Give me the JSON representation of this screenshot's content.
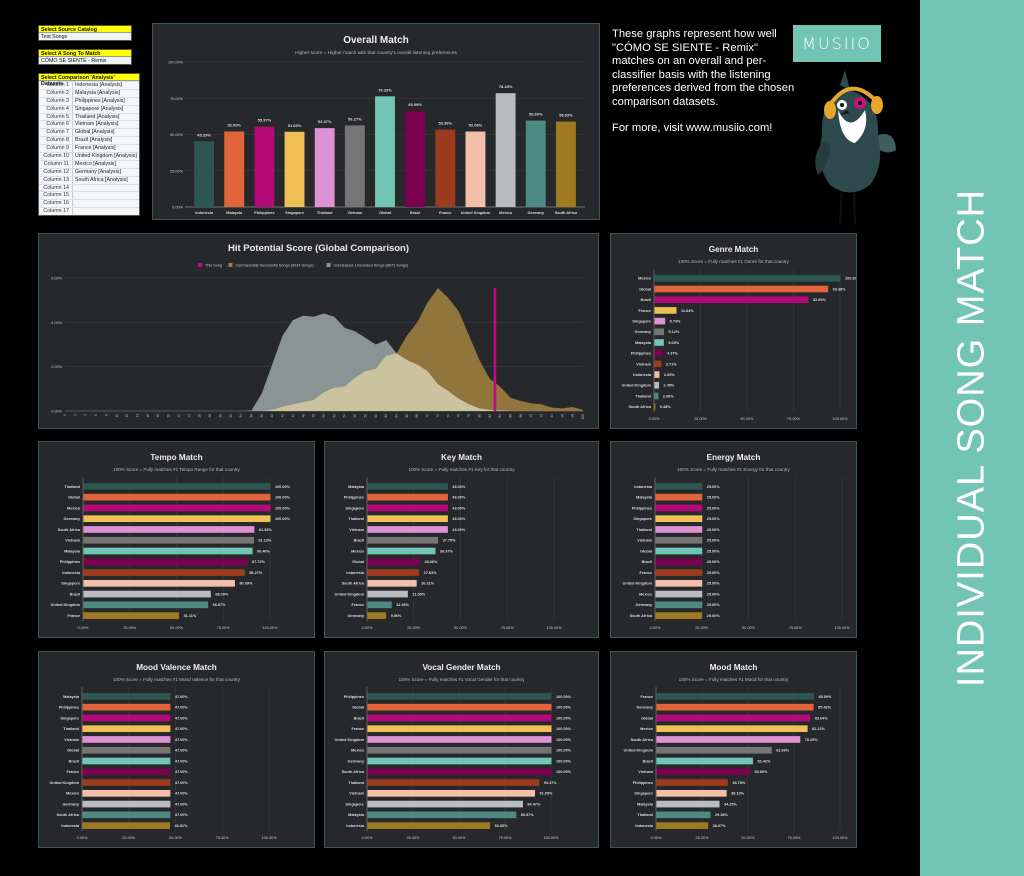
{
  "selectors": {
    "catalog": {
      "label": "Select Source Catalog",
      "value": "Test Songs"
    },
    "song": {
      "label": "Select A Song To Match",
      "value": "CÓMO SE SIENTE - Remix"
    },
    "datasets": {
      "label": "Select Comparison 'Analysis' Datasets",
      "rows": [
        {
          "col": "Column 1",
          "value": "Indonesia [Analysis]"
        },
        {
          "col": "Column 2",
          "value": "Malaysia [Analysis]"
        },
        {
          "col": "Column 3",
          "value": "Philippines [Analysis]"
        },
        {
          "col": "Column 4",
          "value": "Singapore [Analysis]"
        },
        {
          "col": "Column 5",
          "value": "Thailand [Analysis]"
        },
        {
          "col": "Column 6",
          "value": "Vietnam [Analysis]"
        },
        {
          "col": "Column 7",
          "value": "Global [Analysis]"
        },
        {
          "col": "Column 8",
          "value": "Brazil [Analysis]"
        },
        {
          "col": "Column 9",
          "value": "France [Analysis]"
        },
        {
          "col": "Column 10",
          "value": "United Kingdom [Analysis]"
        },
        {
          "col": "Column 11",
          "value": "Mexico [Analysis]"
        },
        {
          "col": "Column 12",
          "value": "Germany [Analysis]"
        },
        {
          "col": "Column 13",
          "value": "South Africa [Analysis]"
        },
        {
          "col": "Column 14",
          "value": ""
        },
        {
          "col": "Column 15",
          "value": ""
        },
        {
          "col": "Column 16",
          "value": ""
        },
        {
          "col": "Column 17",
          "value": ""
        }
      ]
    }
  },
  "description": {
    "paragraph1": "These graphs represent how well \"CÓMO SE SIENTE - Remix\" matches on an overall and per-classifier basis with the listening preferences derived from the chosen comparison datasets.",
    "paragraph2": "For more, visit www.musiio.com!"
  },
  "brand": {
    "logo_text": "MUSIIO",
    "band_title": "INDIVIDUAL SONG MATCH",
    "accent": "#72c4b5"
  },
  "palette": [
    "#2e5652",
    "#e0653a",
    "#b5097a",
    "#f0bf55",
    "#df92d3",
    "#757575",
    "#72c4b5",
    "#7c0050",
    "#9c3b1e",
    "#f2c0aa",
    "#babdbf",
    "#4e8a84",
    "#a07a22"
  ],
  "chart_data": [
    {
      "id": "overall",
      "type": "bar",
      "title": "Overall Match",
      "subtitle": "Higher score = Higher match with that country's overall listening preferences",
      "categories": [
        "Indonesia",
        "Malaysia",
        "Philippines",
        "Singapore",
        "Thailand",
        "Vietnam",
        "Global",
        "Brazil",
        "France",
        "United Kingdom",
        "Mexico",
        "Germany",
        "South Africa"
      ],
      "values": [
        45.29,
        52.09,
        55.37,
        51.89,
        54.37,
        56.27,
        76.33,
        66.09,
        53.36,
        52.06,
        78.48,
        59.6,
        58.93
      ],
      "ylim": [
        0,
        100
      ],
      "yticks": [
        "0.00%",
        "25.00%",
        "50.00%",
        "75.00%",
        "100.00%"
      ],
      "grid": true
    },
    {
      "id": "hit",
      "type": "area",
      "title": "Hit Potential Score (Global Comparison)",
      "legend": [
        {
          "name": "This Song",
          "color": "#c20a86"
        },
        {
          "name": "Commercially Successful Songs (8934 Songs)",
          "color": "#a38241"
        },
        {
          "name": "Unreleased, Uncurated Songs (8672 Songs)",
          "color": "#8f9a9a"
        }
      ],
      "legend_position": "top",
      "ylim": [
        0,
        6
      ],
      "yticks": [
        "0.00%",
        "2.00%",
        "4.00%",
        "6.00%"
      ],
      "x": [
        0,
        2,
        4,
        6,
        8,
        10,
        12,
        14,
        16,
        18,
        20,
        22,
        24,
        26,
        28,
        30,
        32,
        34,
        36,
        38,
        40,
        42,
        44,
        46,
        48,
        50,
        52,
        54,
        56,
        58,
        60,
        62,
        64,
        66,
        68,
        70,
        72,
        74,
        76,
        78,
        80,
        82,
        84,
        86,
        88,
        90,
        92,
        94,
        96,
        98,
        100
      ],
      "this_song": 83,
      "series": [
        {
          "name": "Unreleased, Uncurated Songs (8672 Songs)",
          "values": [
            0,
            0,
            0,
            0,
            0,
            0,
            0,
            0,
            0,
            0,
            0,
            0,
            0,
            0,
            0,
            0,
            0,
            0,
            0.02,
            0.8,
            2.1,
            3.4,
            4.1,
            4.3,
            4.25,
            4.4,
            4.25,
            3.75,
            3.6,
            3.3,
            3.0,
            3.2,
            2.6,
            2.3,
            2.1,
            1.8,
            1.2,
            0.9,
            0.55,
            0.3,
            0.12,
            0.05,
            0.02,
            0,
            0,
            0,
            0,
            0,
            0,
            0,
            0
          ]
        },
        {
          "name": "Commercially Successful Songs (8934 Songs)",
          "values": [
            0,
            0,
            0,
            0,
            0,
            0,
            0,
            0,
            0,
            0,
            0,
            0,
            0,
            0,
            0,
            0,
            0,
            0,
            0,
            0,
            0.05,
            0.2,
            0.3,
            0.4,
            0.5,
            0.85,
            1.05,
            1.1,
            1.5,
            1.8,
            1.9,
            2.5,
            2.6,
            3.4,
            4.0,
            4.9,
            5.55,
            5.1,
            4.5,
            3.4,
            2.3,
            1.45,
            1.1,
            0.6,
            0.45,
            0.35,
            0.3,
            0.15,
            0.12,
            0.18,
            0.05
          ]
        }
      ]
    },
    {
      "id": "genre",
      "type": "bar",
      "orientation": "horizontal",
      "title": "Genre Match",
      "subtitle": "100% Score = Fully matches #1 Genre for that country",
      "categories": [
        "Mexico",
        "Global",
        "Brazil",
        "France",
        "Singapore",
        "Germany",
        "Malaysia",
        "Philippines",
        "Vietnam",
        "Indonesia",
        "United Kingdom",
        "Thailand",
        "South Africa"
      ],
      "values": [
        100.0,
        93.38,
        82.8,
        11.84,
        5.74,
        5.12,
        5.03,
        4.37,
        3.71,
        2.65,
        2.45,
        2.08,
        0.48
      ],
      "xlim": [
        0,
        100
      ],
      "xticks": [
        "0.00%",
        "25.00%",
        "50.00%",
        "75.00%",
        "100.00%"
      ]
    },
    {
      "id": "tempo",
      "type": "bar",
      "orientation": "horizontal",
      "title": "Tempo Match",
      "subtitle": "100% Score = Fully matches #1 Tempo Range for that country",
      "categories": [
        "Thailand",
        "Global",
        "Mexico",
        "Germany",
        "South Africa",
        "Vietnam",
        "Malaysia",
        "Philippines",
        "Indonesia",
        "Singapore",
        "Brazil",
        "United Kingdom",
        "France"
      ],
      "values": [
        100.0,
        100.0,
        100.0,
        100.0,
        91.38,
        91.13,
        90.4,
        87.72,
        86.27,
        80.99,
        68.09,
        66.67,
        51.11
      ],
      "xlim": [
        0,
        100
      ],
      "xticks": [
        "0.00%",
        "25.00%",
        "50.00%",
        "75.00%",
        "100.00%"
      ]
    },
    {
      "id": "key",
      "type": "bar",
      "orientation": "horizontal",
      "title": "Key Match",
      "subtitle": "100% Score = Fully matches #1 Key for that country",
      "categories": [
        "Malaysia",
        "Philippines",
        "Singapore",
        "Thailand",
        "Vietnam",
        "Brazil",
        "Mexico",
        "Global",
        "Indonesia",
        "South Africa",
        "United Kingdom",
        "France",
        "Germany"
      ],
      "values": [
        43.0,
        43.0,
        43.0,
        43.0,
        43.0,
        37.75,
        36.37,
        28.06,
        27.63,
        26.31,
        21.59,
        12.93,
        9.96
      ],
      "xlim": [
        0,
        100
      ],
      "xticks": [
        "0.00%",
        "25.00%",
        "50.00%",
        "75.00%",
        "100.00%"
      ]
    },
    {
      "id": "energy",
      "type": "bar",
      "orientation": "horizontal",
      "title": "Energy Match",
      "subtitle": "100% Score = Fully matches #1 Energy for that country",
      "categories": [
        "Indonesia",
        "Malaysia",
        "Philippines",
        "Singapore",
        "Thailand",
        "Vietnam",
        "Global",
        "Brazil",
        "France",
        "United Kingdom",
        "Mexico",
        "Germany",
        "South Africa"
      ],
      "values": [
        25.0,
        25.0,
        25.0,
        25.0,
        25.0,
        25.0,
        25.0,
        25.0,
        25.0,
        25.0,
        25.0,
        25.0,
        25.0
      ],
      "xlim": [
        0,
        100
      ],
      "xticks": [
        "0.00%",
        "25.00%",
        "50.00%",
        "75.00%",
        "100.00%"
      ]
    },
    {
      "id": "valence",
      "type": "bar",
      "orientation": "horizontal",
      "title": "Mood Valence Match",
      "subtitle": "100% Score = Fully matches #1 Mood Valence for that country",
      "categories": [
        "Malaysia",
        "Philippines",
        "Singapore",
        "Thailand",
        "Vietnam",
        "Global",
        "Brazil",
        "France",
        "United Kingdom",
        "Mexico",
        "Germany",
        "South Africa",
        "Indonesia"
      ],
      "values": [
        47.0,
        47.0,
        47.0,
        47.0,
        47.0,
        47.0,
        47.0,
        47.0,
        47.0,
        47.0,
        47.0,
        47.0,
        46.81
      ],
      "xlim": [
        0,
        100
      ],
      "xticks": [
        "0.00%",
        "25.00%",
        "50.00%",
        "75.00%",
        "100.00%"
      ]
    },
    {
      "id": "vocal",
      "type": "bar",
      "orientation": "horizontal",
      "title": "Vocal Gender Match",
      "subtitle": "100% Score = Fully matches #1 Vocal Gender for that country",
      "categories": [
        "Philippines",
        "Global",
        "Brazil",
        "France",
        "United Kingdom",
        "Mexico",
        "Germany",
        "South Africa",
        "Thailand",
        "Vietnam",
        "Singapore",
        "Malaysia",
        "Indonesia"
      ],
      "values": [
        100.0,
        100.0,
        100.0,
        100.0,
        100.0,
        100.0,
        100.0,
        100.0,
        93.37,
        91.05,
        84.47,
        80.87,
        66.65
      ],
      "xlim": [
        0,
        100
      ],
      "xticks": [
        "0.00%",
        "25.00%",
        "50.00%",
        "75.00%",
        "100.00%"
      ]
    },
    {
      "id": "mood",
      "type": "bar",
      "orientation": "horizontal",
      "title": "Mood Match",
      "subtitle": "100% Score = Fully matches #1 Mood for that country",
      "categories": [
        "France",
        "Germany",
        "Global",
        "Mexico",
        "South Africa",
        "United Kingdom",
        "Brazil",
        "Vietnam",
        "Philippines",
        "Singapore",
        "Malaysia",
        "Thailand",
        "Indonesia"
      ],
      "values": [
        85.59,
        85.42,
        83.64,
        82.12,
        78.15,
        62.66,
        52.42,
        50.8,
        38.78,
        38.13,
        34.25,
        29.38,
        28.07
      ],
      "xlim": [
        0,
        100
      ],
      "xticks": [
        "0.00%",
        "25.00%",
        "50.00%",
        "75.00%",
        "100.00%"
      ]
    }
  ]
}
